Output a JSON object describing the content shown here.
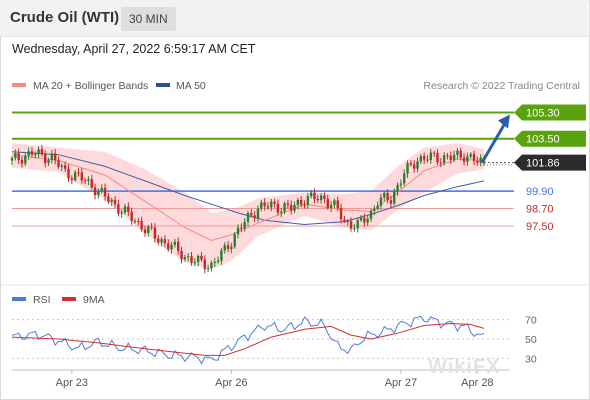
{
  "header": {
    "title": "Crude Oil (WTI)",
    "timeframe": "30 MIN"
  },
  "datetime": "Wednesday, April 27, 2022 6:59:17 AM CET",
  "credit": "Research © 2022 Trading Central",
  "watermark": "WikiFX",
  "colors": {
    "up": "#2e7d2e",
    "down": "#c62828",
    "resistance": "#5aa30f",
    "support": "#4472e0",
    "pivot_lower": "#ef9a9a",
    "bollinger": "#ffcdd2",
    "ma20": "#f28b82",
    "ma50": "#3f5fa0",
    "rsi": "#4f7bd8",
    "rsi_ma": "#d32f2f",
    "arrow": "#2d5fa8"
  },
  "chart_data": [
    {
      "type": "candlestick",
      "legend": [
        {
          "name": "MA 20 + Bollinger Bands",
          "color": "#f28b82"
        },
        {
          "name": "MA 50",
          "color": "#2f4f8f"
        }
      ],
      "x_labels": [
        "Apr 23",
        "Apr 26",
        "Apr 27",
        "Apr 28"
      ],
      "levels": [
        {
          "value": 105.3,
          "label": "105.30",
          "kind": "resistance"
        },
        {
          "value": 103.5,
          "label": "103.50",
          "kind": "resistance"
        },
        {
          "value": 101.86,
          "label": "101.86",
          "kind": "current"
        },
        {
          "value": 99.9,
          "label": "99.90",
          "kind": "pivot"
        },
        {
          "value": 98.7,
          "label": "98.70",
          "kind": "support"
        },
        {
          "value": 97.5,
          "label": "97.50",
          "kind": "support"
        }
      ],
      "ylim": [
        94.2,
        106.3
      ],
      "close_path": [
        [
          0,
          102.0
        ],
        [
          6,
          102.5
        ],
        [
          12,
          102.2
        ],
        [
          16,
          101.2
        ],
        [
          20,
          100.9
        ],
        [
          24,
          100.3
        ],
        [
          28,
          99.5
        ],
        [
          33,
          98.6
        ],
        [
          38,
          97.7
        ],
        [
          44,
          96.6
        ],
        [
          48,
          96.1
        ],
        [
          52,
          95.4
        ],
        [
          56,
          95.0
        ],
        [
          60,
          94.8
        ],
        [
          64,
          95.8
        ],
        [
          68,
          97.2
        ],
        [
          74,
          98.8
        ],
        [
          78,
          98.9
        ],
        [
          84,
          98.7
        ],
        [
          88,
          99.4
        ],
        [
          94,
          99.4
        ],
        [
          98,
          98.6
        ],
        [
          100,
          97.8
        ],
        [
          104,
          97.5
        ],
        [
          108,
          98.4
        ],
        [
          110,
          99.2
        ],
        [
          114,
          99.4
        ],
        [
          118,
          101.1
        ],
        [
          122,
          102.1
        ],
        [
          126,
          102.2
        ],
        [
          132,
          102.2
        ],
        [
          136,
          102.4
        ],
        [
          140,
          101.9
        ],
        [
          142,
          101.86
        ]
      ],
      "bollinger_upper": [
        [
          0,
          103.2
        ],
        [
          14,
          102.9
        ],
        [
          28,
          102.6
        ],
        [
          40,
          101.4
        ],
        [
          52,
          99.8
        ],
        [
          60,
          98.4
        ],
        [
          66,
          98.6
        ],
        [
          74,
          99.4
        ],
        [
          88,
          99.8
        ],
        [
          100,
          99.7
        ],
        [
          108,
          99.9
        ],
        [
          116,
          101.6
        ],
        [
          124,
          102.9
        ],
        [
          134,
          103.2
        ],
        [
          142,
          102.8
        ]
      ],
      "bollinger_lower": [
        [
          0,
          101.5
        ],
        [
          14,
          101.2
        ],
        [
          28,
          99.3
        ],
        [
          40,
          97.0
        ],
        [
          52,
          95.0
        ],
        [
          60,
          94.5
        ],
        [
          66,
          95.1
        ],
        [
          74,
          96.8
        ],
        [
          88,
          98.2
        ],
        [
          100,
          97.4
        ],
        [
          108,
          97.2
        ],
        [
          116,
          98.6
        ],
        [
          124,
          99.8
        ],
        [
          134,
          101.1
        ],
        [
          142,
          101.4
        ]
      ],
      "ma20": [
        [
          0,
          102.4
        ],
        [
          14,
          102.0
        ],
        [
          28,
          101.0
        ],
        [
          40,
          99.2
        ],
        [
          52,
          97.4
        ],
        [
          60,
          96.5
        ],
        [
          66,
          96.9
        ],
        [
          74,
          97.7
        ],
        [
          88,
          99.0
        ],
        [
          100,
          98.6
        ],
        [
          108,
          98.5
        ],
        [
          116,
          99.8
        ],
        [
          124,
          101.3
        ],
        [
          134,
          102.1
        ],
        [
          142,
          102.0
        ]
      ],
      "ma50": [
        [
          0,
          102.6
        ],
        [
          14,
          102.4
        ],
        [
          28,
          101.6
        ],
        [
          40,
          100.6
        ],
        [
          52,
          99.6
        ],
        [
          60,
          99.0
        ],
        [
          68,
          98.4
        ],
        [
          76,
          97.9
        ],
        [
          88,
          97.6
        ],
        [
          100,
          97.8
        ],
        [
          108,
          98.3
        ],
        [
          116,
          98.9
        ],
        [
          124,
          99.6
        ],
        [
          134,
          100.2
        ],
        [
          142,
          100.6
        ]
      ],
      "forecast_arrow": {
        "from": 101.86,
        "to": 105.3
      }
    },
    {
      "type": "line",
      "legend": [
        {
          "name": "RSI",
          "color": "#4f7bd8"
        },
        {
          "name": "9MA",
          "color": "#d32f2f"
        }
      ],
      "y_ticks": [
        70,
        50,
        30
      ],
      "ylim": [
        20,
        80
      ],
      "series": [
        {
          "name": "RSI",
          "points": [
            [
              0,
              52
            ],
            [
              8,
              55
            ],
            [
              14,
              48
            ],
            [
              20,
              40
            ],
            [
              26,
              47
            ],
            [
              32,
              41
            ],
            [
              40,
              38
            ],
            [
              48,
              33
            ],
            [
              56,
              31
            ],
            [
              60,
              28
            ],
            [
              64,
              38
            ],
            [
              70,
              52
            ],
            [
              76,
              64
            ],
            [
              82,
              60
            ],
            [
              88,
              68
            ],
            [
              94,
              64
            ],
            [
              98,
              42
            ],
            [
              102,
              38
            ],
            [
              106,
              52
            ],
            [
              112,
              58
            ],
            [
              118,
              66
            ],
            [
              124,
              72
            ],
            [
              130,
              66
            ],
            [
              136,
              63
            ],
            [
              142,
              51
            ]
          ]
        },
        {
          "name": "9MA",
          "points": [
            [
              0,
              52
            ],
            [
              14,
              50
            ],
            [
              26,
              46
            ],
            [
              40,
              40
            ],
            [
              50,
              36
            ],
            [
              58,
              33
            ],
            [
              64,
              33
            ],
            [
              70,
              40
            ],
            [
              78,
              52
            ],
            [
              88,
              60
            ],
            [
              96,
              63
            ],
            [
              102,
              54
            ],
            [
              108,
              50
            ],
            [
              116,
              56
            ],
            [
              124,
              64
            ],
            [
              132,
              66
            ],
            [
              138,
              65
            ],
            [
              142,
              61
            ]
          ]
        }
      ]
    }
  ]
}
